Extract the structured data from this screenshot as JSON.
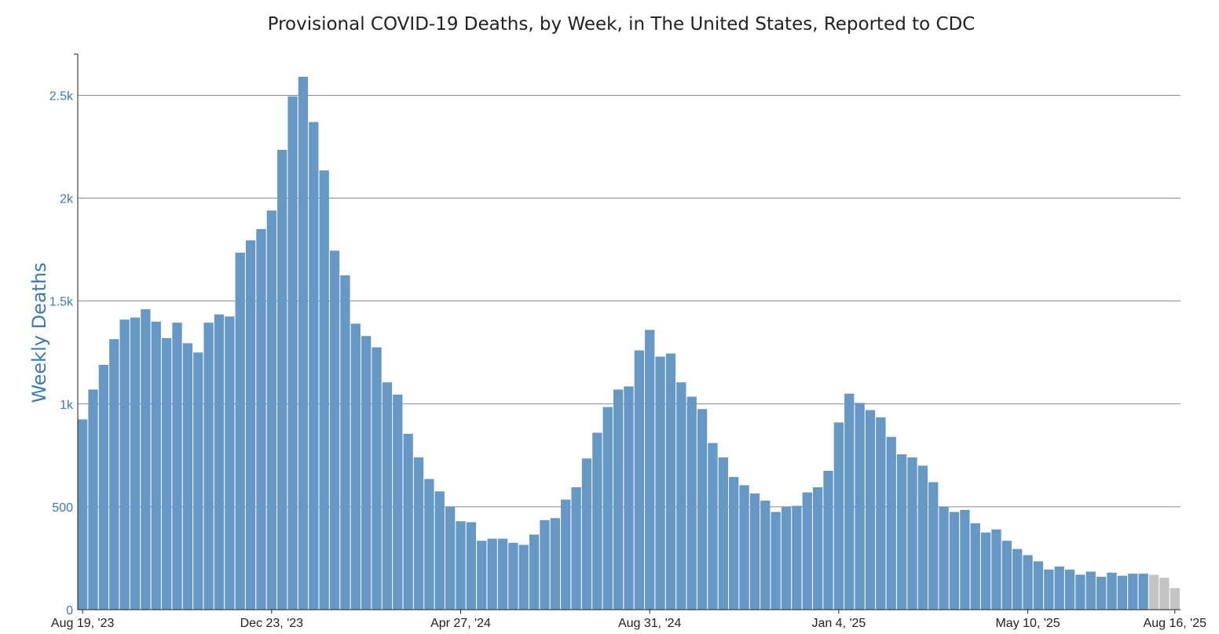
{
  "chart_data": {
    "type": "bar",
    "title": "Provisional COVID-19 Deaths, by Week, in The United States, Reported to CDC",
    "xlabel": "",
    "ylabel": "Weekly Deaths",
    "ylim": [
      0,
      2700
    ],
    "yticks": [
      0,
      500,
      1000,
      1500,
      2000,
      2500
    ],
    "ytick_labels": [
      "0",
      "500",
      "1k",
      "1.5k",
      "2k",
      "2.5k"
    ],
    "xticks": [
      {
        "week_index": 0,
        "label": "Aug 19, '23"
      },
      {
        "week_index": 18,
        "label": "Dec 23, '23"
      },
      {
        "week_index": 36,
        "label": "Apr 27, '24"
      },
      {
        "week_index": 54,
        "label": "Aug 31, '24"
      },
      {
        "week_index": 72,
        "label": "Jan 4, '25"
      },
      {
        "week_index": 90,
        "label": "May 10, '25"
      },
      {
        "week_index": 104,
        "label": "Aug 16, '25"
      }
    ],
    "grid": true,
    "colors": {
      "reported": "#6698c6",
      "incomplete": "#c4c4c4",
      "gridline": "#8c8c8c",
      "axis": "#222222"
    },
    "series": [
      {
        "weekly_deaths": [
          925,
          1070,
          1190,
          1315,
          1410,
          1420,
          1460,
          1400,
          1320,
          1395,
          1295,
          1250,
          1395,
          1435,
          1425,
          1735,
          1795,
          1850,
          1940,
          2235,
          2495,
          2590,
          2370,
          2135,
          1745,
          1625,
          1390,
          1330,
          1275,
          1105,
          1045,
          855,
          740,
          635,
          575,
          500,
          430,
          425,
          335,
          345,
          345,
          325,
          315,
          365,
          435,
          445,
          535,
          595,
          735,
          860,
          985,
          1070,
          1085,
          1260,
          1360,
          1230,
          1245,
          1105,
          1035,
          975,
          810,
          740,
          645,
          605,
          565,
          530,
          475,
          500,
          505,
          570,
          595,
          675,
          910,
          1050,
          1005,
          970,
          935,
          840,
          755,
          740,
          700,
          620,
          500,
          475,
          485,
          420,
          375,
          390,
          335,
          295,
          265,
          235,
          195,
          210,
          195,
          170,
          185,
          160,
          180,
          165,
          175,
          175,
          170,
          155,
          105
        ],
        "incomplete_from_index": 102
      }
    ]
  }
}
